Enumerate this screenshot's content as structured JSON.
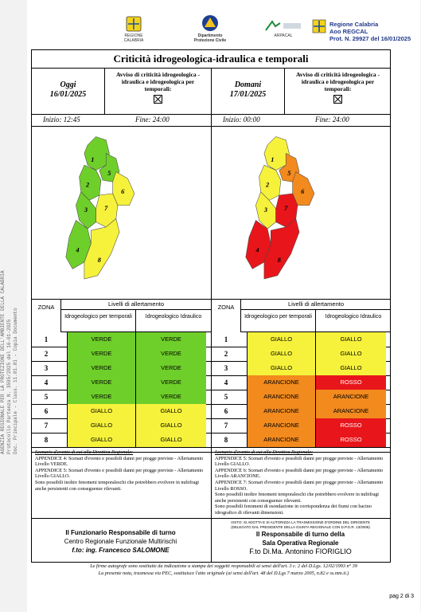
{
  "side_text": [
    "AGENZIA REGIONALE PER LA PROTEZIONE DELL'AMBIENTE DELLA CALABRIA",
    "Protocollo Partenza N. 3595/2025 del 16-01-2025",
    "Doc. Principale - Class. 11.01.01 - Copia Documento"
  ],
  "header": {
    "logo1": "REGIONE CALABRIA",
    "logo2_line1": "Dipartimento",
    "logo2_line2": "Protezione Civile",
    "logo3": "ARPACAL",
    "prot_line1": "Regione Calabria",
    "prot_line2": "Aoo REGCAL",
    "prot_line3": "Prot. N. 29927 del 16/01/2025"
  },
  "title": "Criticità idrogeologica-idraulica e temporali",
  "avviso": "Avviso di criticità idrogeologica - idraulica e idrogeologica per temporali:",
  "today": {
    "label": "Oggi",
    "date": "16/01/2025",
    "inizio": "Inizio: 12:45",
    "fine": "Fine: 24:00"
  },
  "tomorrow": {
    "label": "Domani",
    "date": "17/01/2025",
    "inizio": "Inizio: 00:00",
    "fine": "Fine: 24:00"
  },
  "table": {
    "zona": "ZONA",
    "livelli": "Livelli di allertamento",
    "col1": "Idrogeologico per temporali",
    "col2": "Idrogeologico Idraulico"
  },
  "colors": {
    "VERDE": "#6fcf2a",
    "GIALLO": "#f6f23b",
    "ARANCIONE": "#f28a1e",
    "ROSSO": "#e8161b"
  },
  "today_zones": [
    {
      "z": "1",
      "a": "VERDE",
      "b": "VERDE"
    },
    {
      "z": "2",
      "a": "VERDE",
      "b": "VERDE"
    },
    {
      "z": "3",
      "a": "VERDE",
      "b": "VERDE"
    },
    {
      "z": "4",
      "a": "VERDE",
      "b": "VERDE"
    },
    {
      "z": "5",
      "a": "VERDE",
      "b": "VERDE"
    },
    {
      "z": "6",
      "a": "GIALLO",
      "b": "GIALLO"
    },
    {
      "z": "7",
      "a": "GIALLO",
      "b": "GIALLO"
    },
    {
      "z": "8",
      "a": "GIALLO",
      "b": "GIALLO"
    }
  ],
  "tomorrow_zones": [
    {
      "z": "1",
      "a": "GIALLO",
      "b": "GIALLO"
    },
    {
      "z": "2",
      "a": "GIALLO",
      "b": "GIALLO"
    },
    {
      "z": "3",
      "a": "GIALLO",
      "b": "GIALLO"
    },
    {
      "z": "4",
      "a": "ARANCIONE",
      "b": "ROSSO"
    },
    {
      "z": "5",
      "a": "ARANCIONE",
      "b": "ARANCIONE"
    },
    {
      "z": "6",
      "a": "ARANCIONE",
      "b": "ARANCIONE"
    },
    {
      "z": "7",
      "a": "ARANCIONE",
      "b": "ROSSO"
    },
    {
      "z": "8",
      "a": "ARANCIONE",
      "b": "ROSSO"
    }
  ],
  "notes_left": {
    "title": "Scenario d'evento di cui alla Direttiva Regionale:",
    "lines": [
      "APPENDICE 4: Scenari d'evento e possibili danni per piogge previste - Allertamento Livello VERDE.",
      "APPENDICE 5: Scenari d'evento e possibili danni per piogge previste - Allertamento Livello GIALLO.",
      "Sono possibili inoltre fenomeni temporaleschi che potrebbero evolvere in nubifragi anche persistenti con conseguenze rilevanti."
    ]
  },
  "notes_right": {
    "title": "Scenario d'evento di cui alla Direttiva Regionale:",
    "lines": [
      "APPENDICE 5: Scenari d'evento e possibili danni per piogge previste - Allertamento Livello GIALLO.",
      "APPENDICE 6: Scenari d'evento e possibili danni per piogge previste - Allertamento Livello ARANCIONE.",
      "APPENDICE 7: Scenari d'evento e possibili danni per piogge previste - Allertamento Livello ROSSO.",
      "Sono possibili inoltre fenomeni temporaleschi che potrebbero evolvere in nubifragi anche persistenti con conseguenze rilevanti.",
      "Sono possibili fenomeni di esondazione in corrispondenza dei fiumi con bacino idrografico di rilevanti dimensioni."
    ]
  },
  "sig_left": {
    "l1": "Il Funzionario Responsabile di turno",
    "l2": "Centro Regionale Funzionale Multirischi",
    "l3": "f.to: ing. Francesco SALOMONE"
  },
  "sig_right": {
    "small1": "VISTO: SI ADOTTA E SI AUTORIZZA LA TRASMISSIONE D'ORDINE DEL DIRIGENTE",
    "small2": "(DELEGATO DAL PRESIDENTE DELLA GIUNTA REGIONALE CON D.P.G.R. 13/2006)",
    "l1": "Il Responsabile di turno della",
    "l2": "Sala Operativa Regionale",
    "l3": "F.to Di.Ma. Antonino FIORIGLIO"
  },
  "footer1": "Le firme autografe sono sostituite da indicazione a stampa dei soggetti responsabili ai sensi dell'art. 3 c. 2 del D.Lgs. 12/02/1993 n° 39",
  "footer2": "La presente nota, trasmessa via PEC, sostituisce l'atto originale (ai sensi dell'art. 48 del D.Lgs 7 marzo 2005, n.82 e ss.mm.ii.)",
  "page": "pag 2 di 3",
  "map_labels": [
    "1",
    "2",
    "3",
    "4",
    "5",
    "6",
    "7",
    "8"
  ],
  "map_today_fill": {
    "1": "VERDE",
    "2": "VERDE",
    "3": "VERDE",
    "4": "VERDE",
    "5": "VERDE",
    "6": "GIALLO",
    "7": "GIALLO",
    "8": "GIALLO"
  },
  "map_tomorrow_fill": {
    "1": "GIALLO",
    "2": "GIALLO",
    "3": "GIALLO",
    "4": "ROSSO",
    "5": "ARANCIONE",
    "6": "ARANCIONE",
    "7": "ROSSO",
    "8": "ROSSO"
  }
}
